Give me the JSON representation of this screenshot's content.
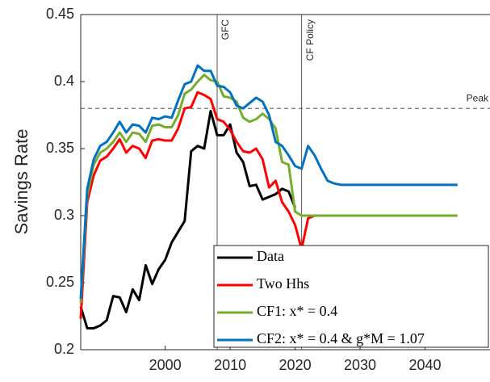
{
  "chart_data": {
    "type": "line",
    "y_label": "Savings Rate",
    "xlim": [
      1987,
      2050
    ],
    "ylim": [
      0.2,
      0.45
    ],
    "xticks": [
      2000,
      2010,
      2020,
      2030,
      2040
    ],
    "yticks": [
      {
        "value": 0.2,
        "label": "0.2"
      },
      {
        "value": 0.25,
        "label": "0.25"
      },
      {
        "value": 0.3,
        "label": "0.3"
      },
      {
        "value": 0.35,
        "label": "0.35"
      },
      {
        "value": 0.4,
        "label": "0.4"
      },
      {
        "value": 0.45,
        "label": "0.45"
      }
    ],
    "legend_position": "lower right",
    "x": [
      1987,
      1988,
      1989,
      1990,
      1991,
      1992,
      1993,
      1994,
      1995,
      1996,
      1997,
      1998,
      1999,
      2000,
      2001,
      2002,
      2003,
      2004,
      2005,
      2006,
      2007,
      2008,
      2009,
      2010,
      2011,
      2012,
      2013,
      2014,
      2015,
      2016,
      2017,
      2018,
      2019,
      2020,
      2021,
      2022,
      2023,
      2024,
      2025,
      2026,
      2027,
      2028,
      2029,
      2030,
      2031,
      2032,
      2033,
      2034,
      2035,
      2036,
      2037,
      2038,
      2039,
      2040,
      2041,
      2042,
      2043,
      2044,
      2045
    ],
    "series": [
      {
        "name": "Data",
        "color": "#000000",
        "values": [
          0.232,
          0.216,
          0.216,
          0.218,
          0.222,
          0.24,
          0.239,
          0.228,
          0.245,
          0.237,
          0.263,
          0.249,
          0.26,
          0.267,
          0.28,
          0.288,
          0.296,
          0.348,
          0.352,
          0.35,
          0.378,
          0.36,
          0.36,
          0.368,
          0.347,
          0.34,
          0.322,
          0.323,
          0.312,
          0.314,
          0.316,
          0.32,
          0.318,
          0.306,
          null,
          null,
          null,
          null,
          null,
          null,
          null,
          null,
          null,
          null,
          null,
          null,
          null,
          null,
          null,
          null,
          null,
          null,
          null,
          null,
          null,
          null,
          null,
          null,
          null
        ]
      },
      {
        "name": "Two Hhs",
        "color": "#ff0000",
        "values": [
          0.223,
          0.31,
          0.33,
          0.341,
          0.344,
          0.35,
          0.357,
          0.347,
          0.352,
          0.35,
          0.343,
          0.356,
          0.357,
          0.356,
          0.356,
          0.365,
          0.38,
          0.381,
          0.392,
          0.39,
          0.387,
          0.372,
          0.37,
          0.364,
          0.355,
          0.348,
          0.347,
          0.35,
          0.342,
          0.321,
          0.326,
          0.31,
          0.303,
          0.293,
          0.275,
          0.298,
          0.3,
          null,
          null,
          null,
          null,
          null,
          null,
          null,
          null,
          null,
          null,
          null,
          null,
          null,
          null,
          null,
          null,
          null,
          null,
          null,
          null,
          null,
          null
        ]
      },
      {
        "name": "CF1: x* = 0.4",
        "color": "#77ac30",
        "values": [
          0.235,
          0.315,
          0.338,
          0.347,
          0.35,
          0.355,
          0.362,
          0.355,
          0.362,
          0.361,
          0.355,
          0.367,
          0.368,
          0.366,
          0.366,
          0.375,
          0.391,
          0.394,
          0.4,
          0.405,
          0.401,
          0.4,
          0.389,
          0.388,
          0.385,
          0.373,
          0.37,
          0.372,
          0.376,
          0.372,
          0.365,
          0.34,
          0.338,
          0.303,
          0.3,
          0.3,
          0.3,
          0.3,
          0.3,
          0.3,
          0.3,
          0.3,
          0.3,
          0.3,
          0.3,
          0.3,
          0.3,
          0.3,
          0.3,
          0.3,
          0.3,
          0.3,
          0.3,
          0.3,
          0.3,
          0.3,
          0.3,
          0.3,
          0.3
        ]
      },
      {
        "name": "CF2: x* = 0.4 & g*M = 1.07",
        "color": "#0072bd",
        "values": [
          0.238,
          0.32,
          0.342,
          0.352,
          0.355,
          0.362,
          0.37,
          0.362,
          0.368,
          0.367,
          0.362,
          0.373,
          0.372,
          0.374,
          0.373,
          0.386,
          0.398,
          0.4,
          0.412,
          0.408,
          0.408,
          0.397,
          0.396,
          0.392,
          0.382,
          0.38,
          0.384,
          0.388,
          0.385,
          0.375,
          0.355,
          0.352,
          0.345,
          0.337,
          0.335,
          0.352,
          0.345,
          0.335,
          0.326,
          0.324,
          0.323,
          0.323,
          0.323,
          0.323,
          0.323,
          0.323,
          0.323,
          0.323,
          0.323,
          0.323,
          0.323,
          0.323,
          0.323,
          0.323,
          0.323,
          0.323,
          0.323,
          0.323,
          0.323
        ]
      }
    ],
    "vlines": [
      {
        "x": 2008,
        "label": "GFC"
      },
      {
        "x": 2021,
        "label": "CF Policy"
      }
    ],
    "hlines": [
      {
        "y": 0.38,
        "label": "Peak"
      }
    ]
  }
}
